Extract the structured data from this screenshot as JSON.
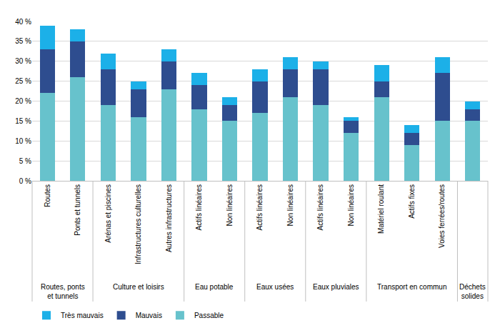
{
  "chart_data": {
    "type": "bar",
    "stacked": true,
    "categories": [
      "Routes",
      "Ponts et tunnels",
      "Arénas et piscines",
      "Infrastructures culturelles",
      "Autres infrastructures",
      "Actifs linéaires",
      "Non linéaires",
      "Actifs linéaires",
      "Non linéaires",
      "Actifs linéaires",
      "Non linéaires",
      "Matériel roulant",
      "Actifs fixes",
      "Voies ferrées/routes",
      null
    ],
    "category_groups": [
      "Routes, ponts et tunnels",
      "Routes, ponts et tunnels",
      "Culture et loisirs",
      "Culture et loisirs",
      "Culture et loisirs",
      "Eau potable",
      "Eau potable",
      "Eaux usées",
      "Eaux usées",
      "Eaux pluviales",
      "Eaux pluviales",
      "Transport en commun",
      "Transport en commun",
      "Transport en commun",
      "Déchets solides"
    ],
    "series": [
      {
        "name": "Passable",
        "color": "#67c2cc",
        "values": [
          22,
          26,
          19,
          16,
          23,
          18,
          15,
          17,
          21,
          19,
          12,
          21,
          9,
          15,
          15
        ]
      },
      {
        "name": "Mauvais",
        "color": "#2e4d8f",
        "values": [
          11,
          9,
          9,
          7,
          7,
          6,
          4,
          8,
          7,
          9,
          3,
          4,
          3,
          12,
          3
        ]
      },
      {
        "name": "Très mauvais",
        "color": "#1cb0e8",
        "values": [
          6,
          3,
          4,
          2,
          3,
          3,
          2,
          3,
          3,
          2,
          1,
          4,
          2,
          4,
          2
        ]
      }
    ],
    "ylim": [
      0,
      40
    ],
    "yticks": [
      {
        "value": 0,
        "label": "0 %"
      },
      {
        "value": 5,
        "label": "5 %"
      },
      {
        "value": 10,
        "label": "10 %"
      },
      {
        "value": 15,
        "label": "15 %"
      },
      {
        "value": 20,
        "label": "20 %"
      },
      {
        "value": 25,
        "label": "25 %"
      },
      {
        "value": 30,
        "label": "30 %"
      },
      {
        "value": 35,
        "label": "35 %"
      },
      {
        "value": 40,
        "label": "40 %"
      }
    ],
    "grid": true,
    "legend": "bottom left"
  }
}
